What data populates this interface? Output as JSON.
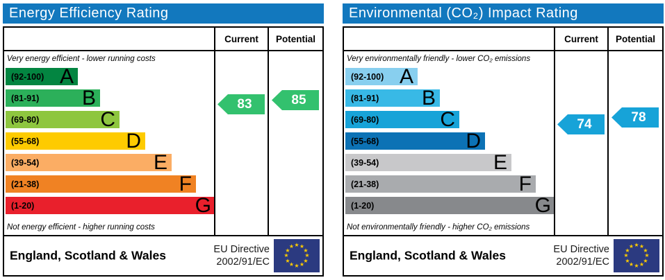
{
  "panels": [
    {
      "title": "Energy Efficiency Rating",
      "header_color": "#1278be",
      "columns": {
        "current": "Current",
        "potential": "Potential"
      },
      "top_note": "Very energy efficient - lower running costs",
      "bottom_note": "Not energy efficient - higher running costs",
      "bands": [
        {
          "range": "(92-100)",
          "letter": "A",
          "color": "#038541"
        },
        {
          "range": "(81-91)",
          "letter": "B",
          "color": "#2cb05a"
        },
        {
          "range": "(69-80)",
          "letter": "C",
          "color": "#8ec63f"
        },
        {
          "range": "(55-68)",
          "letter": "D",
          "color": "#fecb00"
        },
        {
          "range": "(39-54)",
          "letter": "E",
          "color": "#fbad64"
        },
        {
          "range": "(21-38)",
          "letter": "F",
          "color": "#f08223"
        },
        {
          "range": "(1-20)",
          "letter": "G",
          "color": "#e9202c"
        }
      ],
      "current": {
        "value": "83",
        "color": "#33c16e"
      },
      "potential": {
        "value": "85",
        "color": "#33c16e"
      },
      "footer": {
        "region": "England, Scotland & Wales",
        "directive_line1": "EU Directive",
        "directive_line2": "2002/91/EC"
      }
    },
    {
      "title": "Environmental (CO₂) Impact Rating",
      "header_color": "#1278be",
      "columns": {
        "current": "Current",
        "potential": "Potential"
      },
      "top_note": "Very environmentally friendly - lower CO₂ emissions",
      "bottom_note": "Not environmentally friendly - higher CO₂ emissions",
      "bands": [
        {
          "range": "(92-100)",
          "letter": "A",
          "color": "#88cfef"
        },
        {
          "range": "(81-91)",
          "letter": "B",
          "color": "#38b9e6"
        },
        {
          "range": "(69-80)",
          "letter": "C",
          "color": "#17a3d8"
        },
        {
          "range": "(55-68)",
          "letter": "D",
          "color": "#0c72b5"
        },
        {
          "range": "(39-54)",
          "letter": "E",
          "color": "#c8c8ca"
        },
        {
          "range": "(21-38)",
          "letter": "F",
          "color": "#a9abae"
        },
        {
          "range": "(1-20)",
          "letter": "G",
          "color": "#87898c"
        }
      ],
      "current": {
        "value": "74",
        "color": "#17a3d8"
      },
      "potential": {
        "value": "78",
        "color": "#17a3d8"
      },
      "footer": {
        "region": "England, Scotland & Wales",
        "directive_line1": "EU Directive",
        "directive_line2": "2002/91/EC"
      }
    }
  ],
  "chart_data": [
    {
      "type": "bar",
      "title": "Energy Efficiency Rating",
      "categories": [
        "A (92-100)",
        "B (81-91)",
        "C (69-80)",
        "D (55-68)",
        "E (39-54)",
        "F (21-38)",
        "G (1-20)"
      ],
      "series": [
        {
          "name": "Current",
          "values": [
            83
          ],
          "band": "B"
        },
        {
          "name": "Potential",
          "values": [
            85
          ],
          "band": "B"
        }
      ],
      "scale_range": [
        1,
        100
      ],
      "top_annotation": "Very energy efficient - lower running costs",
      "bottom_annotation": "Not energy efficient - higher running costs",
      "footer": "England, Scotland & Wales — EU Directive 2002/91/EC"
    },
    {
      "type": "bar",
      "title": "Environmental (CO₂) Impact Rating",
      "categories": [
        "A (92-100)",
        "B (81-91)",
        "C (69-80)",
        "D (55-68)",
        "E (39-54)",
        "F (21-38)",
        "G (1-20)"
      ],
      "series": [
        {
          "name": "Current",
          "values": [
            74
          ],
          "band": "C"
        },
        {
          "name": "Potential",
          "values": [
            78
          ],
          "band": "C"
        }
      ],
      "scale_range": [
        1,
        100
      ],
      "top_annotation": "Very environmentally friendly - lower CO₂ emissions",
      "bottom_annotation": "Not environmentally friendly - higher CO₂ emissions",
      "footer": "England, Scotland & Wales — EU Directive 2002/91/EC"
    }
  ]
}
